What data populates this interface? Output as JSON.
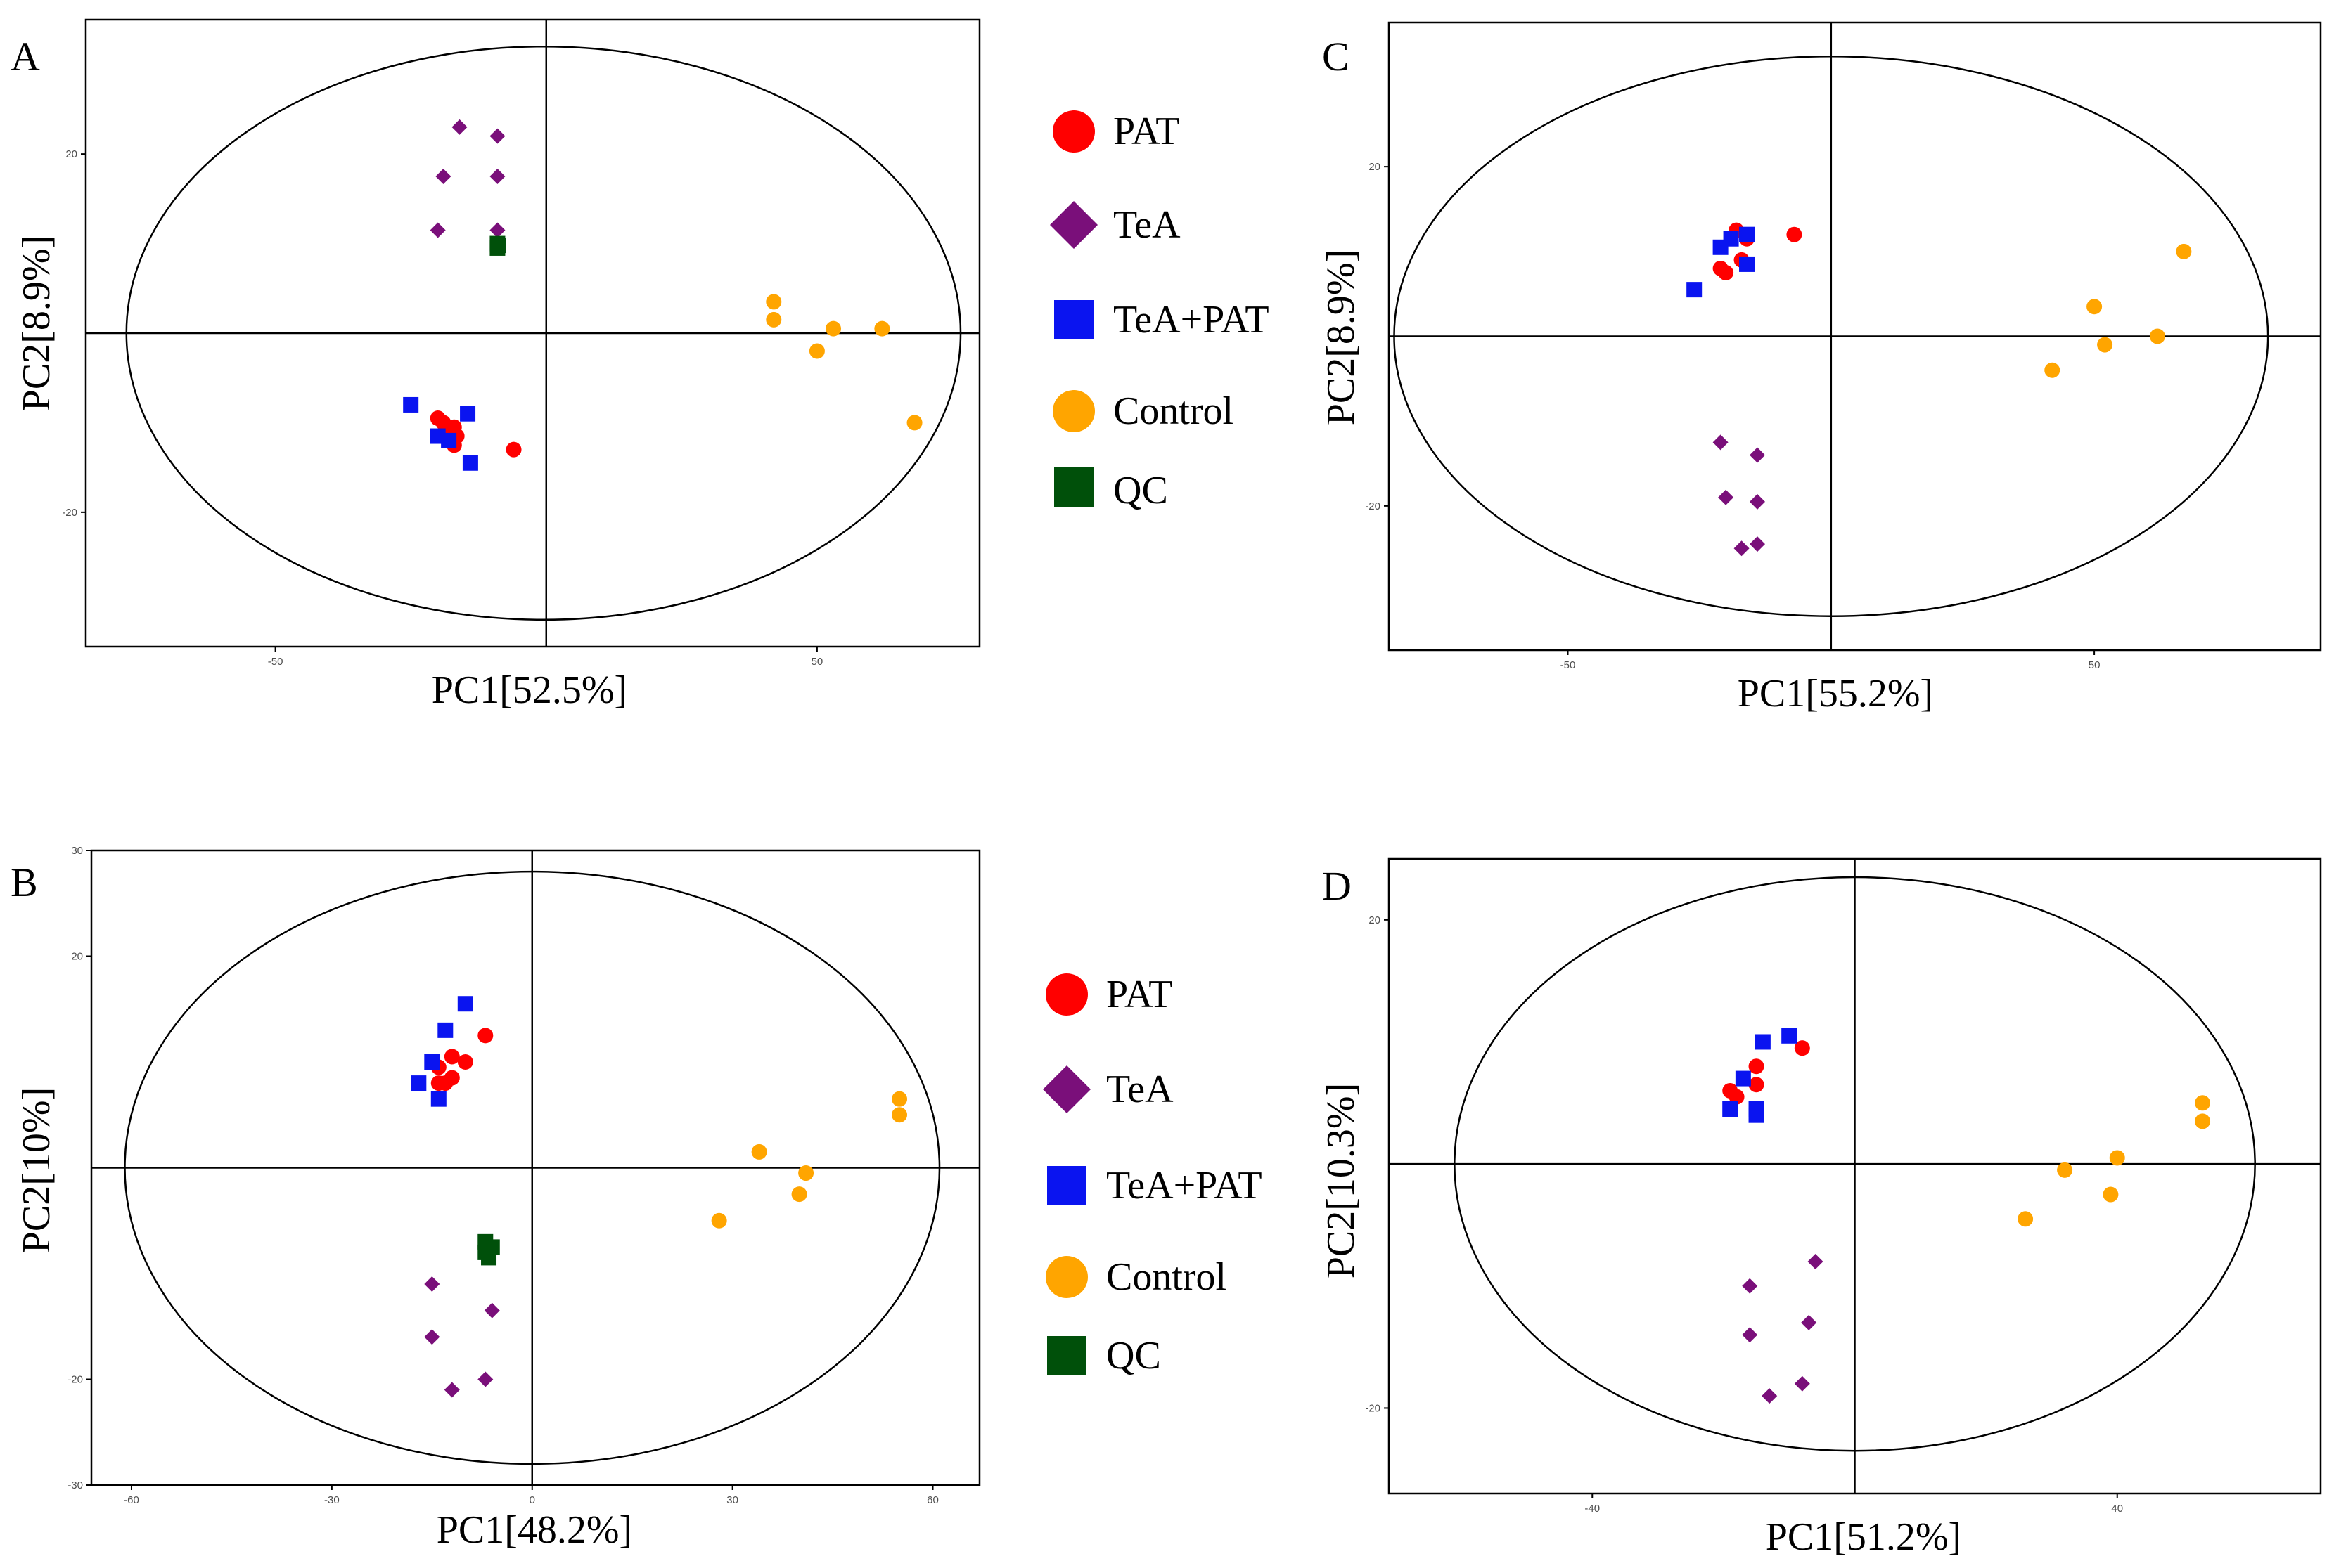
{
  "colors": {
    "PAT": "#ff0000",
    "TeA": "#7a0f7a",
    "TeA+PAT": "#0a14f0",
    "Control": "#ffa500",
    "QC": "#00500a"
  },
  "legend": [
    {
      "key": "PAT",
      "label": "PAT",
      "shape": "circle"
    },
    {
      "key": "TeA",
      "label": "TeA",
      "shape": "diamond"
    },
    {
      "key": "TeA+PAT",
      "label": "TeA+PAT",
      "shape": "square"
    },
    {
      "key": "Control",
      "label": "Control",
      "shape": "circle"
    },
    {
      "key": "QC",
      "label": "QC",
      "shape": "square"
    }
  ],
  "chart_data": [
    {
      "type": "scatter",
      "panel": "A",
      "xlabel": "PC1[52.5%]",
      "ylabel": "PC2[8.9%]",
      "xlim": [
        -85,
        80
      ],
      "ylim": [
        -35,
        35
      ],
      "xticks": [
        -50,
        50
      ],
      "yticks": [
        20,
        -20
      ],
      "ellipse": {
        "cx": -0.5,
        "cy": 0,
        "rx": 77,
        "ry": 32
      },
      "grid": false,
      "series": [
        {
          "name": "PAT",
          "points": [
            [
              -20,
              -9.5
            ],
            [
              -19,
              -10
            ],
            [
              -18,
              -11
            ],
            [
              -17,
              -10.5
            ],
            [
              -16.5,
              -11.5
            ],
            [
              -17,
              -12.5
            ],
            [
              -6,
              -13
            ]
          ]
        },
        {
          "name": "TeA",
          "points": [
            [
              -16,
              23
            ],
            [
              -9,
              22
            ],
            [
              -19,
              17.5
            ],
            [
              -9,
              17.5
            ],
            [
              -20,
              11.5
            ],
            [
              -9,
              11.5
            ]
          ]
        },
        {
          "name": "TeA+PAT",
          "points": [
            [
              -25,
              -8
            ],
            [
              -20,
              -11.5
            ],
            [
              -18,
              -12
            ],
            [
              -14.5,
              -9
            ],
            [
              -14,
              -14.5
            ]
          ]
        },
        {
          "name": "Control",
          "points": [
            [
              42,
              3.5
            ],
            [
              42,
              1.5
            ],
            [
              53,
              0.5
            ],
            [
              62,
              0.5
            ],
            [
              50,
              -2
            ],
            [
              68,
              -10
            ]
          ]
        },
        {
          "name": "QC",
          "points": [
            [
              -9,
              10
            ],
            [
              -9,
              9.5
            ],
            [
              -8.8,
              9.8
            ]
          ]
        }
      ]
    },
    {
      "type": "scatter",
      "panel": "B",
      "xlabel": "PC1[48.2%]",
      "ylabel": "PC2[10%]",
      "xlim": [
        -66,
        67
      ],
      "ylim": [
        -30,
        30
      ],
      "xticks": [
        -60,
        -30,
        0,
        30,
        60
      ],
      "yticks": [
        30,
        20,
        -20,
        -30
      ],
      "ellipse": {
        "cx": 0,
        "cy": 0,
        "rx": 61,
        "ry": 28
      },
      "grid": false,
      "series": [
        {
          "name": "PAT",
          "points": [
            [
              -14,
              9.5
            ],
            [
              -12,
              10.5
            ],
            [
              -10,
              10
            ],
            [
              -13,
              8
            ],
            [
              -12,
              8.5
            ],
            [
              -14,
              8
            ],
            [
              -7,
              12.5
            ]
          ]
        },
        {
          "name": "TeA",
          "points": [
            [
              -15,
              -11
            ],
            [
              -6,
              -13.5
            ],
            [
              -15,
              -16
            ],
            [
              -7,
              -20
            ],
            [
              -12,
              -21
            ]
          ]
        },
        {
          "name": "TeA+PAT",
          "points": [
            [
              -17,
              8
            ],
            [
              -15,
              10
            ],
            [
              -13,
              13
            ],
            [
              -10,
              15.5
            ],
            [
              -14,
              6.5
            ]
          ]
        },
        {
          "name": "Control",
          "points": [
            [
              55,
              6.5
            ],
            [
              55,
              5
            ],
            [
              34,
              1.5
            ],
            [
              41,
              -0.5
            ],
            [
              40,
              -2.5
            ],
            [
              28,
              -5
            ]
          ]
        },
        {
          "name": "QC",
          "points": [
            [
              -7,
              -7
            ],
            [
              -6,
              -7.5
            ],
            [
              -6.5,
              -8.5
            ],
            [
              -7,
              -8
            ]
          ]
        }
      ]
    },
    {
      "type": "scatter",
      "panel": "C",
      "xlabel": "PC1[55.2%]",
      "ylabel": "PC2[8.9%]",
      "xlim": [
        -84,
        93
      ],
      "ylim": [
        -37,
        37
      ],
      "xticks": [
        -50,
        50
      ],
      "yticks": [
        20,
        -20
      ],
      "ellipse": {
        "cx": 0,
        "cy": 0,
        "rx": 83,
        "ry": 33
      },
      "grid": false,
      "series": [
        {
          "name": "PAT",
          "points": [
            [
              -21,
              8
            ],
            [
              -20,
              7.5
            ],
            [
              -18,
              12.5
            ],
            [
              -17,
              9
            ],
            [
              -16,
              11.5
            ],
            [
              -7,
              12
            ]
          ]
        },
        {
          "name": "TeA",
          "points": [
            [
              -21,
              -12.5
            ],
            [
              -14,
              -14
            ],
            [
              -20,
              -19
            ],
            [
              -14,
              -19.5
            ],
            [
              -17,
              -25
            ],
            [
              -14,
              -24.5
            ]
          ]
        },
        {
          "name": "TeA+PAT",
          "points": [
            [
              -26,
              5.5
            ],
            [
              -21,
              10.5
            ],
            [
              -19,
              11.5
            ],
            [
              -16,
              12
            ],
            [
              -16,
              8.5
            ]
          ]
        },
        {
          "name": "Control",
          "points": [
            [
              67,
              10
            ],
            [
              50,
              3.5
            ],
            [
              52,
              -1
            ],
            [
              62,
              0
            ],
            [
              42,
              -4
            ]
          ]
        }
      ]
    },
    {
      "type": "scatter",
      "panel": "D",
      "xlabel": "PC1[51.2%]",
      "ylabel": "PC2[10.3%]",
      "xlim": [
        -71,
        71
      ],
      "ylim": [
        -27,
        25
      ],
      "xticks": [
        -40,
        40
      ],
      "yticks": [
        20,
        -20
      ],
      "ellipse": {
        "cx": 0,
        "cy": 0,
        "rx": 61,
        "ry": 23.5
      },
      "grid": false,
      "series": [
        {
          "name": "PAT",
          "points": [
            [
              -19,
              6
            ],
            [
              -15,
              8
            ],
            [
              -15,
              6.5
            ],
            [
              -8,
              9.5
            ],
            [
              -18,
              5.5
            ]
          ]
        },
        {
          "name": "TeA",
          "points": [
            [
              -6,
              -8
            ],
            [
              -16,
              -10
            ],
            [
              -7,
              -13
            ],
            [
              -16,
              -14
            ],
            [
              -8,
              -18
            ],
            [
              -13,
              -19
            ]
          ]
        },
        {
          "name": "TeA+PAT",
          "points": [
            [
              -19,
              4.5
            ],
            [
              -17,
              7
            ],
            [
              -14,
              10
            ],
            [
              -10,
              10.5
            ],
            [
              -15,
              4.5
            ],
            [
              -15,
              4
            ]
          ]
        },
        {
          "name": "Control",
          "points": [
            [
              53,
              5
            ],
            [
              53,
              3.5
            ],
            [
              40,
              0.5
            ],
            [
              32,
              -0.5
            ],
            [
              39,
              -2.5
            ],
            [
              26,
              -4.5
            ]
          ]
        }
      ]
    }
  ],
  "panels": [
    {
      "letter": "A",
      "xlabel": "PC1[52.5%]",
      "ylabel": "PC2[8.9%]",
      "xticks": [
        "-50",
        "50"
      ],
      "yticks": [
        "20",
        "-20"
      ]
    },
    {
      "letter": "B",
      "xlabel": "PC1[48.2%]",
      "ylabel": "PC2[10%]",
      "xticks": [
        "-60",
        "-30",
        "0",
        "30",
        "60"
      ],
      "yticks": [
        "30",
        "20",
        "-20",
        "-30"
      ]
    },
    {
      "letter": "C",
      "xlabel": "PC1[55.2%]",
      "ylabel": "PC2[8.9%]",
      "xticks": [
        "-50",
        "50"
      ],
      "yticks": [
        "20",
        "-20"
      ]
    },
    {
      "letter": "D",
      "xlabel": "PC1[51.2%]",
      "ylabel": "PC2[10.3%]",
      "xticks": [
        "-40",
        "40"
      ],
      "yticks": [
        "20",
        "-20"
      ]
    }
  ]
}
